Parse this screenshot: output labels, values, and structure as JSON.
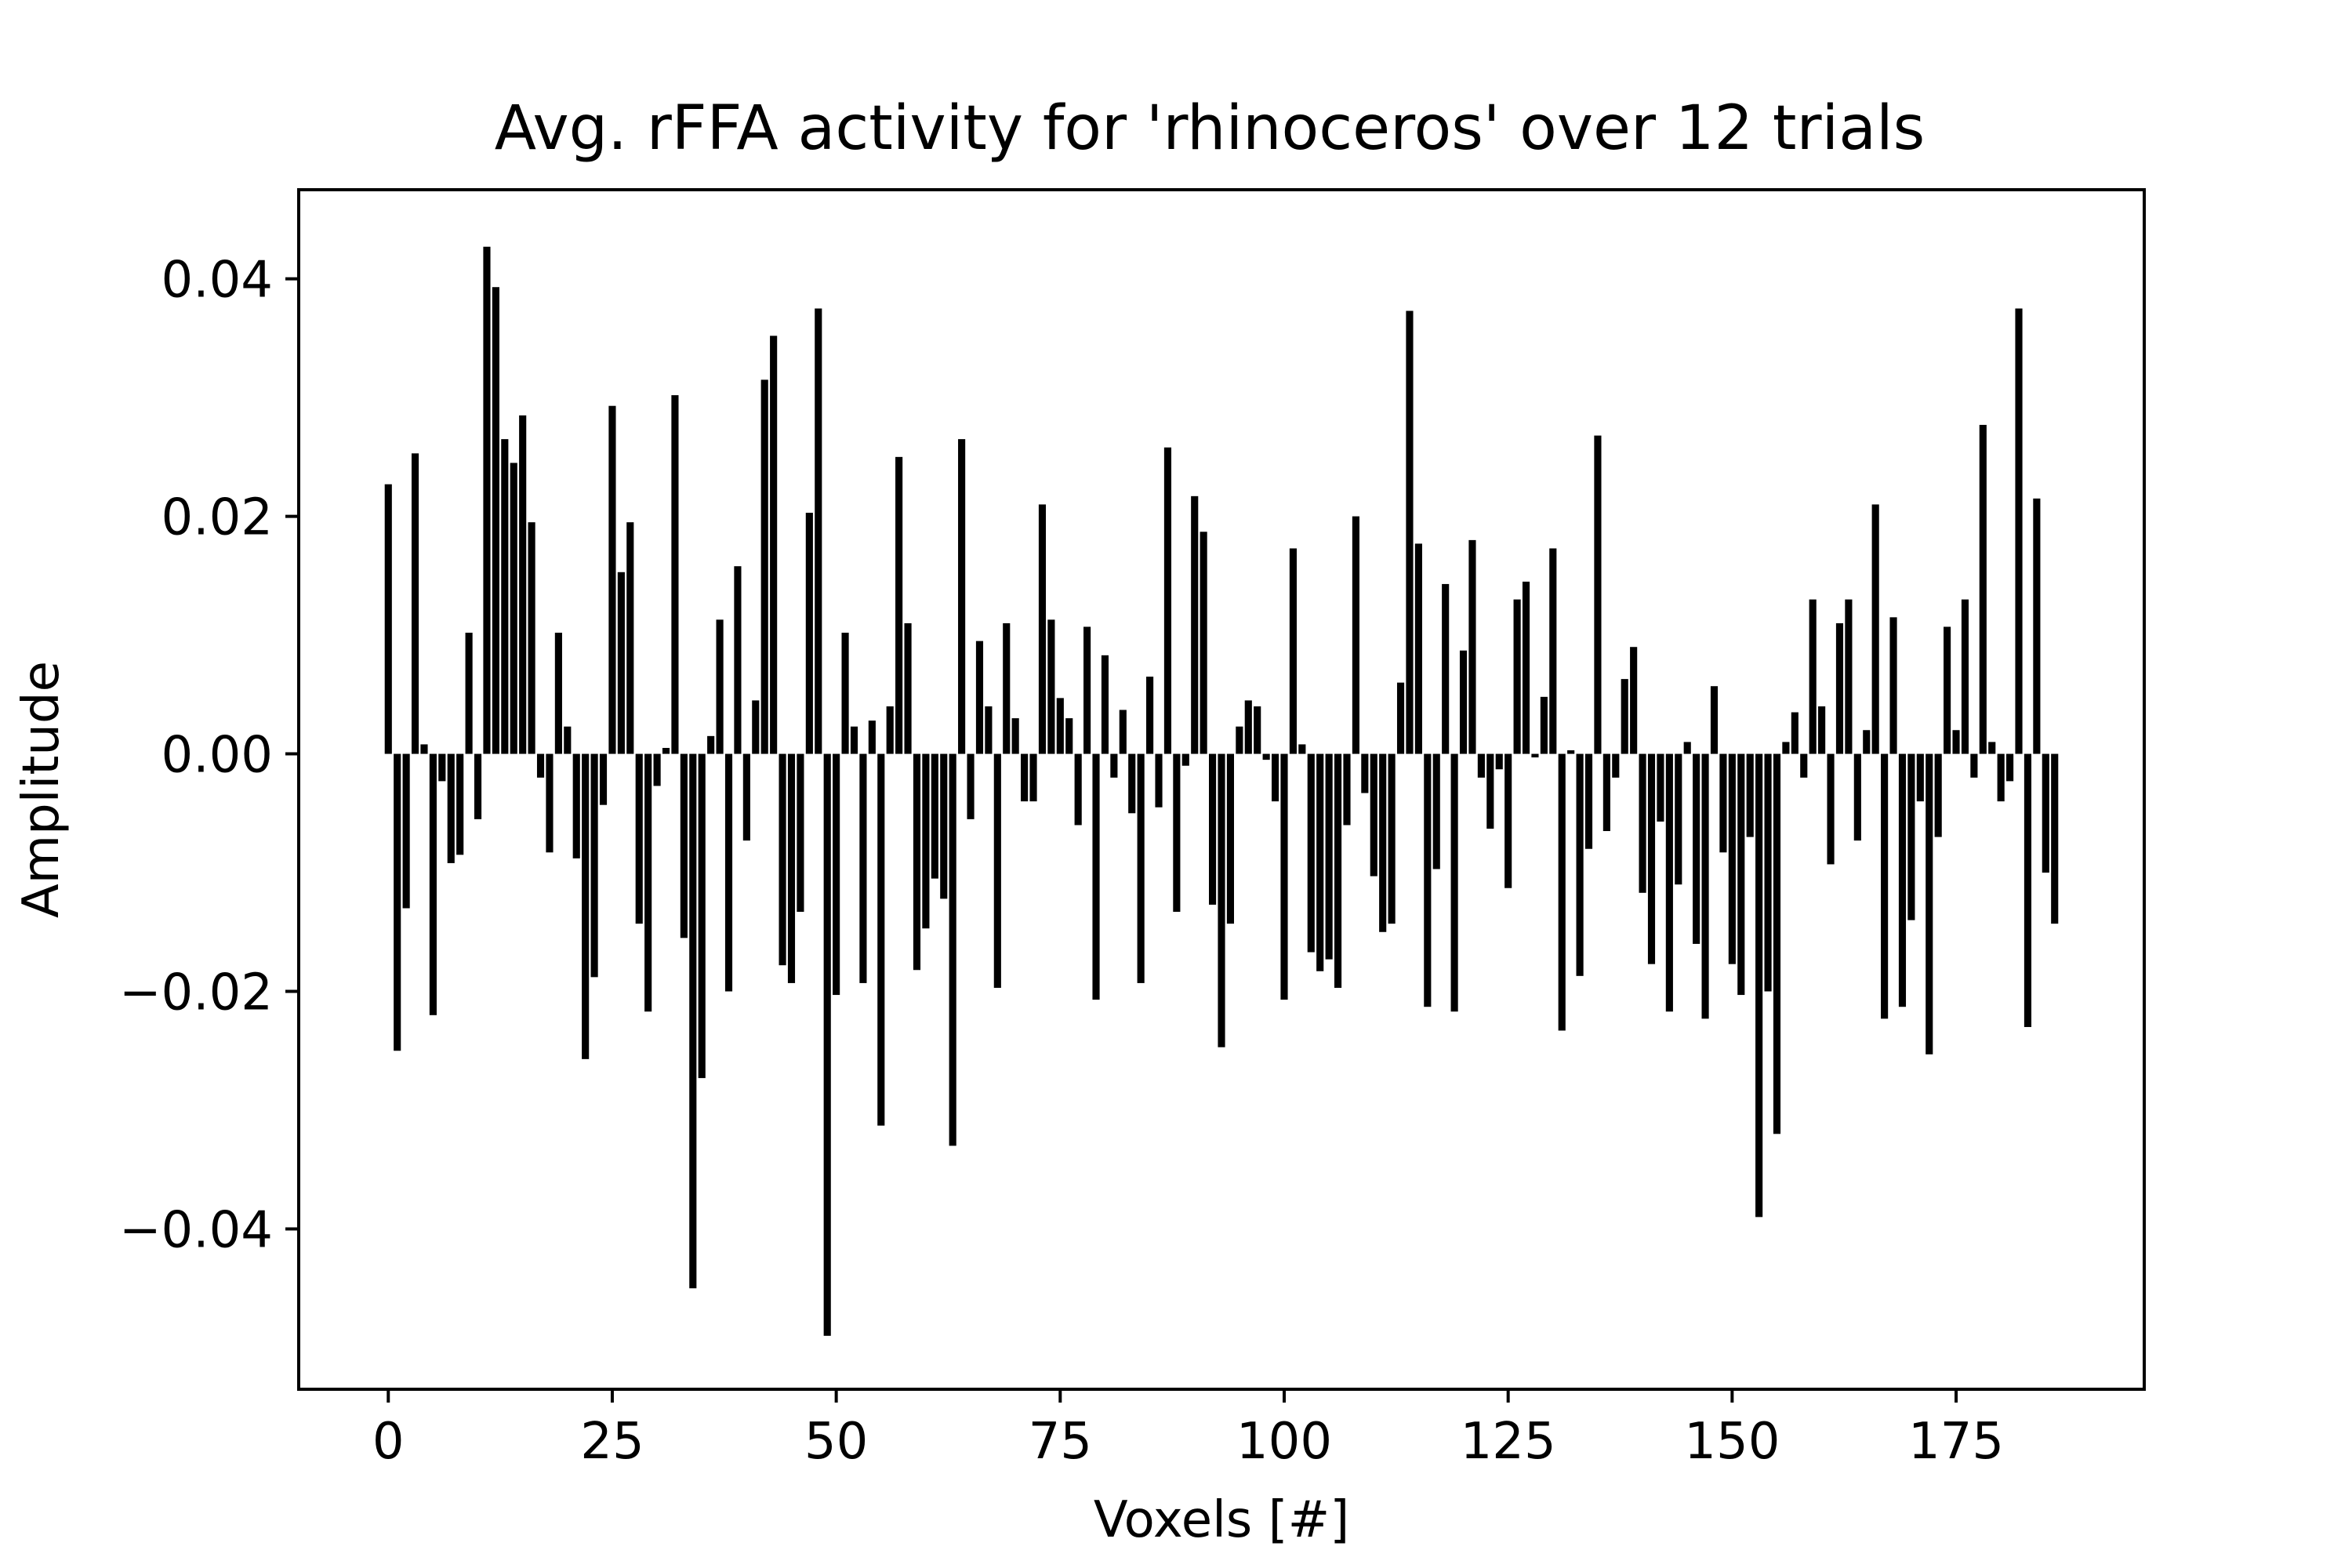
{
  "chart_data": {
    "type": "bar",
    "title": "Avg. rFFA activity for 'rhinoceros' over 12 trials",
    "xlabel": "Voxels [#]",
    "ylabel": "Amplitude",
    "xlim": [
      -10,
      196
    ],
    "ylim": [
      -0.0535,
      0.0475
    ],
    "x_ticks": [
      0,
      25,
      50,
      75,
      100,
      125,
      150,
      175
    ],
    "x_tick_labels": [
      "0",
      "25",
      "50",
      "75",
      "100",
      "125",
      "150",
      "175"
    ],
    "y_ticks": [
      -0.04,
      -0.02,
      0.0,
      0.02,
      0.04
    ],
    "y_tick_labels": [
      "−0.04",
      "−0.02",
      "0.00",
      "0.02",
      "0.04"
    ],
    "grid": false,
    "bar_color": "#000000",
    "x": [
      0,
      1,
      2,
      3,
      4,
      5,
      6,
      7,
      8,
      9,
      10,
      11,
      12,
      13,
      14,
      15,
      16,
      17,
      18,
      19,
      20,
      21,
      22,
      23,
      24,
      25,
      26,
      27,
      28,
      29,
      30,
      31,
      32,
      33,
      34,
      35,
      36,
      37,
      38,
      39,
      40,
      41,
      42,
      43,
      44,
      45,
      46,
      47,
      48,
      49,
      50,
      51,
      52,
      53,
      54,
      55,
      56,
      57,
      58,
      59,
      60,
      61,
      62,
      63,
      64,
      65,
      66,
      67,
      68,
      69,
      70,
      71,
      72,
      73,
      74,
      75,
      76,
      77,
      78,
      79,
      80,
      81,
      82,
      83,
      84,
      85,
      86,
      87,
      88,
      89,
      90,
      91,
      92,
      93,
      94,
      95,
      96,
      97,
      98,
      99,
      100,
      101,
      102,
      103,
      104,
      105,
      106,
      107,
      108,
      109,
      110,
      111,
      112,
      113,
      114,
      115,
      116,
      117,
      118,
      119,
      120,
      121,
      122,
      123,
      124,
      125,
      126,
      127,
      128,
      129,
      130,
      131,
      132,
      133,
      134,
      135,
      136,
      137,
      138,
      139,
      140,
      141,
      142,
      143,
      144,
      145,
      146,
      147,
      148,
      149,
      150,
      151,
      152,
      153,
      154,
      155,
      156,
      157,
      158,
      159,
      160,
      161,
      162,
      163,
      164,
      165,
      166,
      167,
      168,
      169,
      170,
      171,
      172,
      173,
      174,
      175,
      176,
      177,
      178,
      179,
      180,
      181,
      182,
      183,
      184,
      185,
      186
    ],
    "values": [
      0.0227,
      -0.025,
      -0.013,
      0.0253,
      0.0008,
      -0.022,
      -0.0023,
      -0.0092,
      -0.0085,
      0.0102,
      -0.0055,
      0.0427,
      0.0393,
      0.0265,
      0.0245,
      0.0285,
      0.0195,
      -0.002,
      -0.0083,
      0.0102,
      0.0023,
      -0.0088,
      -0.0257,
      -0.0188,
      -0.0043,
      0.0293,
      0.0153,
      0.0195,
      -0.0143,
      -0.0217,
      -0.0027,
      0.0005,
      0.0302,
      -0.0155,
      -0.045,
      -0.0273,
      0.0015,
      0.0113,
      -0.02,
      0.0158,
      -0.0073,
      0.0045,
      0.0315,
      0.0352,
      -0.0178,
      -0.0193,
      -0.0133,
      0.0203,
      0.0375,
      -0.049,
      -0.0203,
      0.0102,
      0.0023,
      -0.0193,
      0.0028,
      -0.0313,
      0.004,
      0.025,
      0.011,
      -0.0182,
      -0.0147,
      -0.0105,
      -0.0122,
      -0.033,
      0.0265,
      -0.0055,
      0.0095,
      0.004,
      -0.0197,
      0.011,
      0.003,
      -0.004,
      -0.004,
      0.021,
      0.0113,
      0.0047,
      0.003,
      -0.006,
      0.0107,
      -0.0207,
      0.0083,
      -0.002,
      0.0037,
      -0.005,
      -0.0193,
      0.0065,
      -0.0045,
      0.0258,
      -0.0133,
      -0.001,
      0.0217,
      0.0187,
      -0.0127,
      -0.0247,
      -0.0143,
      0.0023,
      0.0045,
      0.004,
      -0.0005,
      -0.004,
      -0.0207,
      0.0173,
      0.0008,
      -0.0167,
      -0.0183,
      -0.0173,
      -0.0197,
      -0.006,
      0.02,
      -0.0033,
      -0.0103,
      -0.015,
      -0.0143,
      0.006,
      0.0373,
      0.0177,
      -0.0213,
      -0.0097,
      0.0143,
      -0.0217,
      0.0087,
      0.018,
      -0.002,
      -0.0063,
      -0.0013,
      -0.0113,
      0.013,
      0.0145,
      -0.0003,
      0.0048,
      0.0173,
      -0.0233,
      0.0003,
      -0.0187,
      -0.008,
      0.0268,
      -0.0065,
      -0.002,
      0.0063,
      0.009,
      -0.0117,
      -0.0177,
      -0.0057,
      -0.0217,
      -0.011,
      0.001,
      -0.016,
      -0.0223,
      0.0057,
      -0.0083,
      -0.0177,
      -0.0203,
      -0.007,
      -0.039,
      -0.02,
      -0.032,
      0.001,
      0.0035,
      -0.002,
      0.013,
      0.004,
      -0.0093,
      0.011,
      0.013,
      -0.0073,
      0.002,
      0.021,
      -0.0223,
      0.0115,
      -0.0213,
      -0.014,
      -0.004,
      -0.0253,
      -0.007,
      0.0107,
      0.002,
      0.013,
      -0.002,
      0.0277,
      0.001,
      -0.004,
      -0.0023,
      0.0375,
      -0.023,
      0.0215,
      -0.01,
      -0.0143
    ]
  }
}
